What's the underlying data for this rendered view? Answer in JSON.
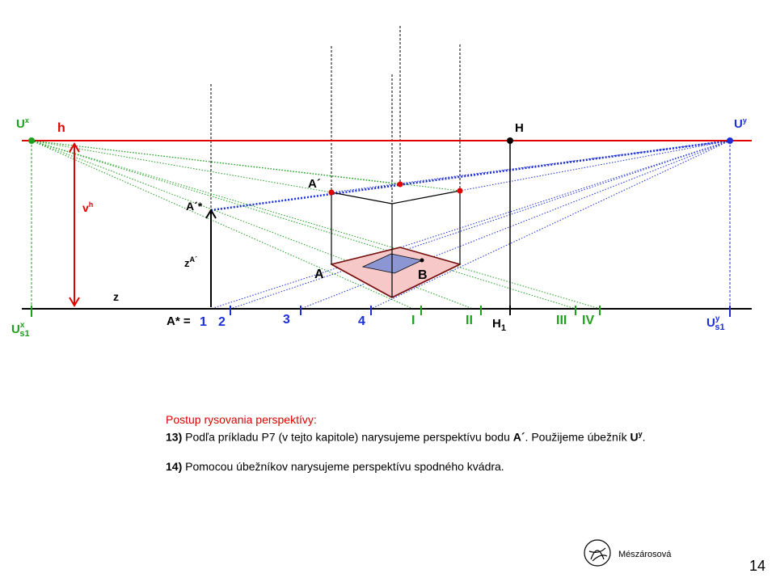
{
  "diagram": {
    "labels": {
      "ux": "Ux",
      "ux_sup": "x",
      "uy": "Uy",
      "uy_sup": "y",
      "h": "h",
      "H": "H",
      "vh": "vh",
      "vh_sup": "h",
      "a_prime": "A´",
      "a_prime_star": "A´*",
      "z_a": "z",
      "z_a_sup": "A´",
      "z": "z",
      "a_point": "A",
      "b_point": "B",
      "a_star_eq": "A* =",
      "uxs1_main": "U",
      "uxs1_sup": "x",
      "uxs1_sub": "s1",
      "uys1_main": "U",
      "uys1_sup": "y",
      "uys1_sub": "s1",
      "h1_main": "H",
      "h1_sub": "1"
    },
    "blue_ticks": [
      "1",
      "2",
      "3",
      "4"
    ],
    "green_ticks": [
      "I",
      "II",
      "III",
      "IV"
    ],
    "colors": {
      "horizon": "#e00000",
      "blue": "#1c2fd6",
      "green": "#1ea01e",
      "red": "#e00000",
      "fill_pink": "#f6c8c8",
      "fill_blue": "#8c96d2"
    }
  },
  "text": {
    "title": "Postup rysovania perspektívy:",
    "step13_num": "13)",
    "step13_a": " Podľa príkladu P7 (v tejto kapitole) narysujeme perspektívu bodu ",
    "step13_bold": "A´",
    "step13_b": ". Použijeme úbežník ",
    "step13_u": "U",
    "step13_u_sup": "y",
    "step13_c": ".",
    "step14_num": "14)",
    "step14_a": " Pomocou úbežníkov narysujeme perspektívu spodného kvádra."
  },
  "footer": {
    "author": "Mészárosová",
    "page": "14"
  }
}
